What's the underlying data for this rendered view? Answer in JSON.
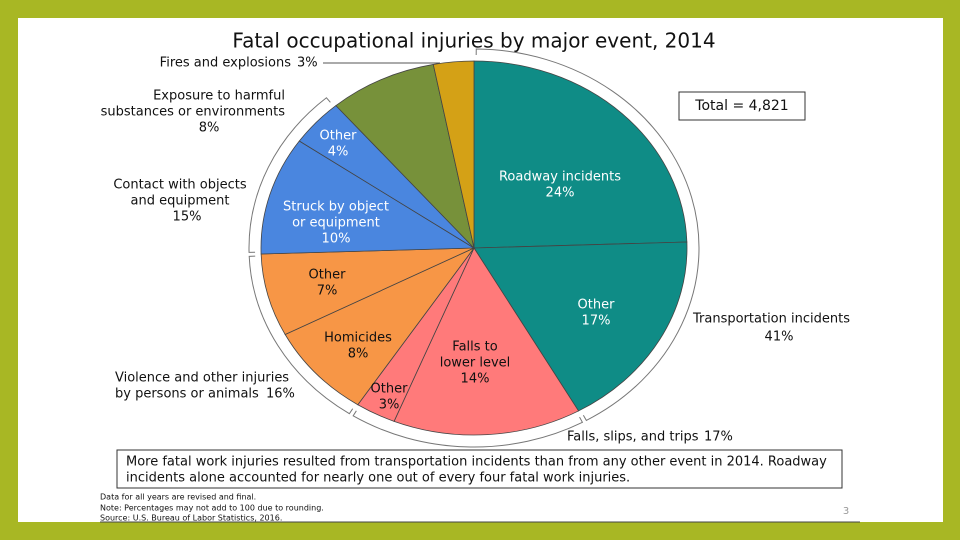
{
  "chart_data": {
    "type": "pie",
    "title": "Fatal occupational injuries by major event, 2014",
    "total_label": "Total = 4,821",
    "slices": [
      {
        "name": [
          "Roadway incidents"
        ],
        "value": 24,
        "value_label": "24%",
        "color": "#0f8c86"
      },
      {
        "name": [
          "Other"
        ],
        "value": 17,
        "value_label": "17%",
        "color": "#0f8c86"
      },
      {
        "name": [
          "Falls to",
          "lower level"
        ],
        "value": 14,
        "value_label": "14%",
        "color": "#ff7a7a"
      },
      {
        "name": [
          "Other"
        ],
        "value": 3,
        "value_label": "3%",
        "color": "#ff7a7a"
      },
      {
        "name": [
          "Homicides"
        ],
        "value": 8,
        "value_label": "8%",
        "color": "#f79646"
      },
      {
        "name": [
          "Other"
        ],
        "value": 7,
        "value_label": "7%",
        "color": "#f79646"
      },
      {
        "name": [
          "Struck by object",
          "or equipment"
        ],
        "value": 10,
        "value_label": "10%",
        "color": "#4a86df"
      },
      {
        "name": [
          "Other"
        ],
        "value": 4,
        "value_label": "4%",
        "color": "#4a86df"
      },
      {
        "name": [
          "Exposure to harmful",
          "substances or environments"
        ],
        "value": 8,
        "value_label": "8%",
        "color": "#77913a"
      },
      {
        "name": [
          "Fires and explosions"
        ],
        "value": 3,
        "value_label": "3%",
        "color": "#d4a116"
      }
    ],
    "groups": [
      {
        "name": [
          "Transportation incidents"
        ],
        "value": 41,
        "value_label": "41%"
      },
      {
        "name": [
          "Falls, slips, and trips"
        ],
        "value": 17,
        "value_label": "17%"
      },
      {
        "name": [
          "Violence and other injuries",
          "by persons or animals"
        ],
        "value": 16,
        "value_label": "16%"
      },
      {
        "name": [
          "Contact with objects",
          "and equipment"
        ],
        "value": 15,
        "value_label": "15%"
      }
    ],
    "callout": [
      "More fatal work injuries resulted from transportation incidents than from any other event in 2014. Roadway",
      "incidents alone accounted for nearly one out of every four fatal work injuries."
    ],
    "footnotes": [
      "Data for all years are revised and final.",
      "Note: Percentages may not add to 100 due to rounding.",
      "Source: U.S. Bureau of Labor Statistics, 2016."
    ],
    "page_number": "3"
  }
}
